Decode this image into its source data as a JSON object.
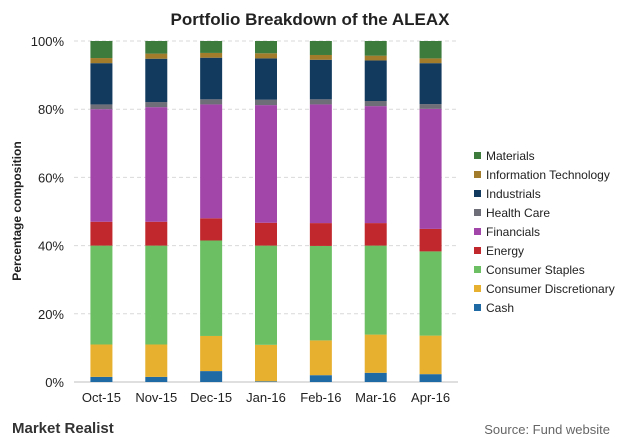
{
  "chart_data": {
    "type": "bar",
    "stacked": true,
    "title": "Portfolio Breakdown of the ALEAX",
    "ylabel": "Percentage composition",
    "xlabel": "",
    "ylim": [
      0,
      100
    ],
    "yticks": [
      "0%",
      "20%",
      "40%",
      "60%",
      "80%",
      "100%"
    ],
    "grid": true,
    "legend_position": "right",
    "categories": [
      "Oct-15",
      "Nov-15",
      "Dec-15",
      "Jan-16",
      "Feb-16",
      "Mar-16",
      "Apr-16"
    ],
    "series": [
      {
        "name": "Cash",
        "color": "#1f6aa5",
        "values": [
          1.5,
          1.5,
          3.2,
          0.2,
          2.0,
          2.7,
          2.3
        ]
      },
      {
        "name": "Consumer Discretionary",
        "color": "#e8b02f",
        "values": [
          9.5,
          9.5,
          10.3,
          10.7,
          10.2,
          11.2,
          11.3
        ]
      },
      {
        "name": "Consumer Staples",
        "color": "#6cbf63",
        "values": [
          29.0,
          29.0,
          28.0,
          29.1,
          27.7,
          26.1,
          24.7
        ]
      },
      {
        "name": "Energy",
        "color": "#c0282d",
        "values": [
          7.0,
          7.0,
          6.5,
          6.7,
          6.7,
          6.6,
          6.6
        ]
      },
      {
        "name": "Financials",
        "color": "#a346aa",
        "values": [
          33.0,
          33.6,
          33.4,
          34.5,
          34.8,
          34.3,
          35.2
        ]
      },
      {
        "name": "Health Care",
        "color": "#6e6e78",
        "values": [
          1.4,
          1.5,
          1.5,
          1.6,
          1.5,
          1.5,
          1.4
        ]
      },
      {
        "name": "Industrials",
        "color": "#123a5e",
        "values": [
          12.1,
          12.7,
          12.2,
          12.1,
          11.6,
          11.9,
          12.0
        ]
      },
      {
        "name": "Information Technology",
        "color": "#a27b2b",
        "values": [
          1.5,
          1.5,
          1.4,
          1.5,
          1.4,
          1.4,
          1.4
        ]
      },
      {
        "name": "Materials",
        "color": "#3c7b3c",
        "values": [
          5.0,
          3.7,
          3.5,
          3.6,
          4.1,
          4.3,
          5.1
        ]
      }
    ]
  },
  "footer": {
    "brand": "Market Realist",
    "source": "Source: Fund website"
  }
}
